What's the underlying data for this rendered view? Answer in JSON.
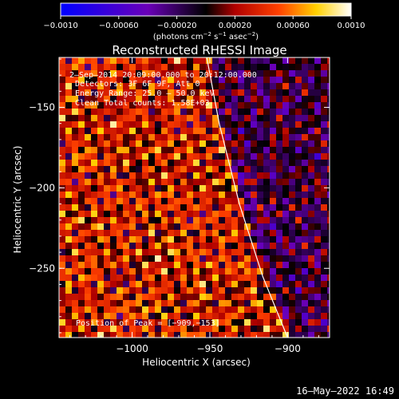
{
  "chart_data": {
    "type": "heatmap",
    "title": "Reconstructed RHESSI Image",
    "xlabel": "Heliocentric X (arcsec)",
    "ylabel": "Heliocentric Y (arcsec)",
    "x_range": [
      -1047,
      -873
    ],
    "y_range": [
      -293,
      -119
    ],
    "x_ticks": [
      -1000,
      -950,
      -900
    ],
    "x_tick_labels": [
      "−1000",
      "−950",
      "−900"
    ],
    "y_ticks": [
      -150,
      -200,
      -250
    ],
    "y_tick_labels": [
      "−150",
      "−200",
      "−250"
    ],
    "colorbar": {
      "range": [
        -0.001,
        0.001
      ],
      "ticks": [
        -0.001,
        -0.0006,
        -0.0002,
        0.0002,
        0.0006,
        0.001
      ],
      "tick_labels": [
        "−0.0010",
        "−0.00060",
        "−0.00020",
        "0.00020",
        "0.00060",
        "0.0010"
      ],
      "units_prefix": "(photons cm",
      "units_sup1": "−2",
      "units_mid1": " s",
      "units_sup2": "−1",
      "units_mid2": " asec",
      "units_sup3": "−2",
      "units_suffix": ")",
      "colormap": "blue-purple-red-yellow-white"
    },
    "annotations": {
      "time": "2–Sep–2014 20:09:00.000 to 20:12:00.000",
      "detectors": "Detectors: 3F 6F 9F, Att 0",
      "energy": "Energy Range: 25.0 – 50.0 keV",
      "clean": "Clean     Total counts: 1.58E+03",
      "peak": "Position of Peak = [−909,−153]"
    },
    "peak_position": [
      -909,
      -153
    ],
    "limb_curve": [
      {
        "x": -952,
        "y": -119
      },
      {
        "x": -944,
        "y": -160
      },
      {
        "x": -931,
        "y": -210
      },
      {
        "x": -916,
        "y": -255
      },
      {
        "x": -900,
        "y": -293
      }
    ]
  },
  "footer": {
    "timestamp": "16–May–2022 16:49"
  }
}
